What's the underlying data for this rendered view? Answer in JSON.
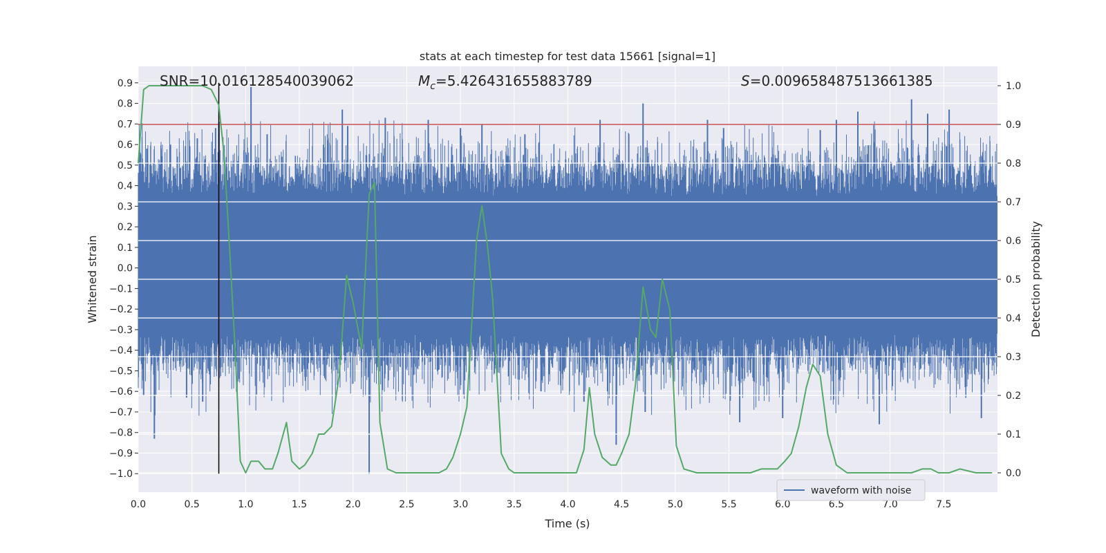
{
  "chart_data": {
    "type": "line",
    "title": "stats at each timestep for test data 15661 [signal=1]",
    "xlabel": "Time (s)",
    "ylabel_left": "Whitened strain",
    "ylabel_right": "Detection probability",
    "xlim": [
      0,
      8
    ],
    "ylim_left": [
      -1.09,
      0.98
    ],
    "ylim_right": [
      -0.05,
      1.05
    ],
    "x_ticks": [
      0.0,
      0.5,
      1.0,
      1.5,
      2.0,
      2.5,
      3.0,
      3.5,
      4.0,
      4.5,
      5.0,
      5.5,
      6.0,
      6.5,
      7.0,
      7.5
    ],
    "x_tick_labels": [
      "0.0",
      "0.5",
      "1.0",
      "1.5",
      "2.0",
      "2.5",
      "3.0",
      "3.5",
      "4.0",
      "4.5",
      "5.0",
      "5.5",
      "6.0",
      "6.5",
      "7.0",
      "7.5"
    ],
    "left_ticks": [
      0.9,
      0.8,
      0.7,
      0.6,
      0.5,
      0.4,
      0.3,
      0.2,
      0.1,
      0.0,
      -0.1,
      -0.2,
      -0.3,
      -0.4,
      -0.5,
      -0.6,
      -0.7,
      -0.8,
      -0.9,
      -1.0
    ],
    "left_tick_labels": [
      "0.9",
      "0.8",
      "0.7",
      "0.6",
      "0.5",
      "0.4",
      "0.3",
      "0.2",
      "0.1",
      "0.0",
      "−0.1",
      "−0.2",
      "−0.3",
      "−0.4",
      "−0.5",
      "−0.6",
      "−0.7",
      "−0.8",
      "−0.9",
      "−1.0"
    ],
    "right_ticks": [
      1.0,
      0.9,
      0.8,
      0.7,
      0.6,
      0.5,
      0.4,
      0.3,
      0.2,
      0.1,
      0.0
    ],
    "right_tick_labels": [
      "1.0",
      "0.9",
      "0.8",
      "0.7",
      "0.6",
      "0.5",
      "0.4",
      "0.3",
      "0.2",
      "0.1",
      "0.0"
    ],
    "grid": true,
    "legend_position": "lower-right",
    "annotations": {
      "snr": "SNR=10.016128540039062",
      "mc_symbol": "M",
      "mc_subscript": "c",
      "mc_value": "=5.426431655883789",
      "s_symbol": "S",
      "s_value": "=0.009658487513661385"
    },
    "threshold": {
      "axis": "right",
      "value": 0.9,
      "color": "#c44e52"
    },
    "marker_line": {
      "x": 0.75,
      "y_from": -1.0,
      "y_to": 0.9,
      "color": "#000000"
    },
    "series": [
      {
        "name": "waveform with noise",
        "axis": "left",
        "kind": "noise",
        "color": "#4c72b0",
        "envelope": {
          "typical_low": -0.32,
          "typical_high": 0.35,
          "tail_range": [
            -0.72,
            0.72
          ]
        },
        "peaks": [
          [
            0.05,
            -0.62
          ],
          [
            0.08,
            0.58
          ],
          [
            0.15,
            -0.83
          ],
          [
            0.3,
            0.6
          ],
          [
            0.45,
            -0.63
          ],
          [
            0.55,
            0.63
          ],
          [
            0.6,
            -0.65
          ],
          [
            0.72,
            0.68
          ],
          [
            1.05,
            0.88
          ],
          [
            1.2,
            0.65
          ],
          [
            1.9,
            0.77
          ],
          [
            1.95,
            0.69
          ],
          [
            2.15,
            -1.0
          ],
          [
            2.3,
            0.73
          ],
          [
            2.7,
            0.72
          ],
          [
            3.0,
            0.68
          ],
          [
            3.2,
            0.7
          ],
          [
            3.6,
            0.65
          ],
          [
            3.75,
            -0.6
          ],
          [
            4.15,
            -0.65
          ],
          [
            4.3,
            0.72
          ],
          [
            4.45,
            -0.86
          ],
          [
            4.7,
            0.8
          ],
          [
            4.72,
            -0.7
          ],
          [
            5.3,
            0.72
          ],
          [
            5.45,
            0.68
          ],
          [
            5.6,
            -0.75
          ],
          [
            6.0,
            -0.73
          ],
          [
            6.35,
            0.67
          ],
          [
            6.5,
            0.72
          ],
          [
            6.7,
            0.76
          ],
          [
            6.9,
            -0.76
          ],
          [
            7.2,
            0.82
          ],
          [
            7.35,
            0.75
          ],
          [
            7.55,
            0.77
          ],
          [
            7.85,
            -0.73
          ]
        ]
      },
      {
        "name": "detection probability",
        "axis": "right",
        "kind": "line",
        "color": "#55a868",
        "x": [
          0.0,
          0.05,
          0.1,
          0.2,
          0.3,
          0.4,
          0.5,
          0.6,
          0.68,
          0.75,
          0.8,
          0.85,
          0.9,
          0.95,
          1.0,
          1.05,
          1.12,
          1.18,
          1.25,
          1.3,
          1.38,
          1.43,
          1.5,
          1.55,
          1.62,
          1.68,
          1.73,
          1.8,
          1.87,
          1.94,
          2.0,
          2.08,
          2.15,
          2.2,
          2.25,
          2.32,
          2.4,
          2.45,
          2.52,
          2.6,
          2.7,
          2.8,
          2.87,
          2.93,
          3.0,
          3.06,
          3.15,
          3.2,
          3.25,
          3.3,
          3.38,
          3.45,
          3.5,
          3.6,
          3.7,
          3.8,
          3.93,
          4.0,
          4.08,
          4.15,
          4.2,
          4.25,
          4.32,
          4.4,
          4.45,
          4.5,
          4.57,
          4.63,
          4.7,
          4.77,
          4.82,
          4.88,
          4.95,
          5.01,
          5.08,
          5.2,
          5.4,
          5.6,
          5.7,
          5.8,
          5.9,
          5.95,
          6.02,
          6.08,
          6.15,
          6.22,
          6.28,
          6.35,
          6.42,
          6.5,
          6.6,
          6.8,
          7.0,
          7.2,
          7.3,
          7.38,
          7.45,
          7.55,
          7.65,
          7.8,
          7.95
        ],
        "y": [
          0.8,
          0.99,
          1.0,
          1.0,
          1.0,
          1.0,
          1.0,
          1.0,
          0.99,
          0.95,
          0.82,
          0.58,
          0.33,
          0.03,
          0.0,
          0.03,
          0.03,
          0.01,
          0.01,
          0.05,
          0.13,
          0.03,
          0.01,
          0.02,
          0.05,
          0.1,
          0.1,
          0.12,
          0.25,
          0.51,
          0.44,
          0.32,
          0.72,
          0.75,
          0.13,
          0.01,
          0.0,
          0.0,
          0.0,
          0.0,
          0.0,
          0.0,
          0.01,
          0.04,
          0.1,
          0.17,
          0.6,
          0.69,
          0.59,
          0.45,
          0.05,
          0.01,
          0.0,
          0.0,
          0.0,
          0.0,
          0.0,
          0.0,
          0.0,
          0.06,
          0.22,
          0.1,
          0.04,
          0.02,
          0.02,
          0.05,
          0.1,
          0.23,
          0.48,
          0.37,
          0.35,
          0.5,
          0.42,
          0.07,
          0.01,
          0.0,
          0.0,
          0.0,
          0.0,
          0.01,
          0.01,
          0.01,
          0.03,
          0.05,
          0.12,
          0.22,
          0.28,
          0.25,
          0.1,
          0.02,
          0.0,
          0.0,
          0.0,
          0.0,
          0.01,
          0.01,
          0.0,
          0.0,
          0.01,
          0.0,
          0.0
        ]
      }
    ]
  }
}
